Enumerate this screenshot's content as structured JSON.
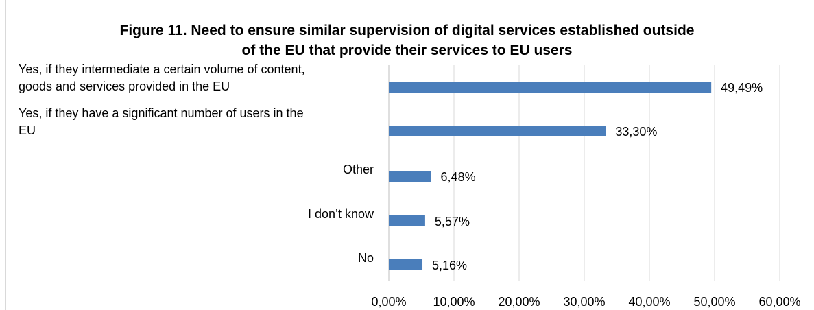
{
  "chart_data": {
    "type": "bar",
    "orientation": "horizontal",
    "title": "Figure 11. Need to ensure similar supervision of digital services established outside of the EU that provide their services to EU users",
    "title_lines": [
      "Figure 11. Need to ensure similar supervision of digital services established outside",
      "of the EU that provide their services to EU users"
    ],
    "categories": [
      "Yes, if they intermediate a certain volume of content, goods and services provided in the EU",
      "Yes, if they have a significant number of users in the EU",
      "Other",
      "I don’t know",
      "No"
    ],
    "category_lines": [
      [
        "Yes, if they intermediate a certain volume of content,",
        "goods and services provided in the EU"
      ],
      [
        "Yes, if they have a significant number of users in the",
        "EU"
      ],
      [
        "Other"
      ],
      [
        "I don’t know"
      ],
      [
        "No"
      ]
    ],
    "values": [
      49.49,
      33.3,
      6.48,
      5.57,
      5.16
    ],
    "value_labels": [
      "49,49%",
      "33,30%",
      "6,48%",
      "5,57%",
      "5,16%"
    ],
    "xlim": [
      0,
      60
    ],
    "x_ticks": [
      0,
      10,
      20,
      30,
      40,
      50,
      60
    ],
    "x_tick_labels": [
      "0,00%",
      "10,00%",
      "20,00%",
      "30,00%",
      "40,00%",
      "50,00%",
      "60,00%"
    ],
    "grid": true,
    "legend": "none",
    "bar_color": "#4a7ebb",
    "grid_color": "#d9d9d9"
  }
}
